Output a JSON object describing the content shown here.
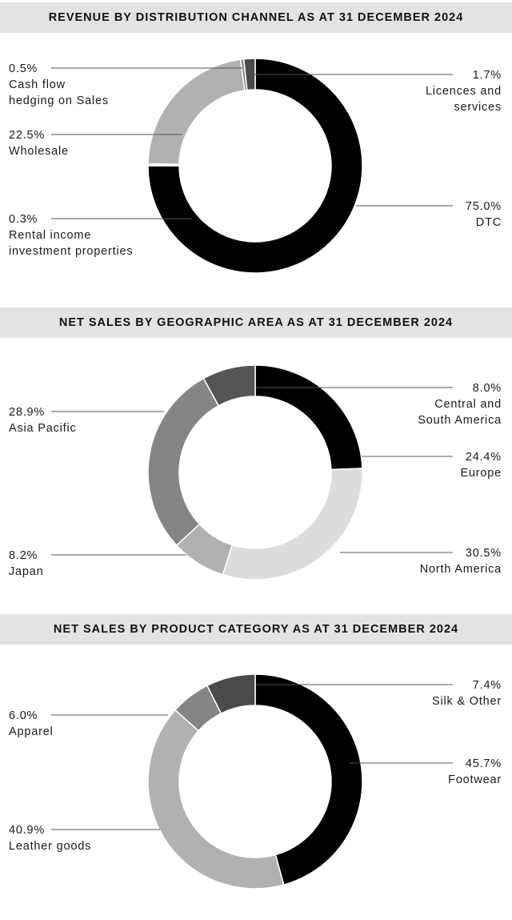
{
  "chart_data": [
    {
      "type": "pie",
      "title": "REVENUE BY DISTRIBUTION CHANNEL AS AT 31 DECEMBER 2024",
      "slices": [
        {
          "pct": "75.0%",
          "value": 75.0,
          "label_lines": [
            "DTC"
          ],
          "color": "#000000"
        },
        {
          "pct": "0.3%",
          "value": 0.3,
          "label_lines": [
            "Rental income",
            "investment properties"
          ],
          "color": "#dcdcdc"
        },
        {
          "pct": "22.5%",
          "value": 22.5,
          "label_lines": [
            "Wholesale"
          ],
          "color": "#b1b1b1"
        },
        {
          "pct": "0.5%",
          "value": 0.5,
          "label_lines": [
            "Cash flow",
            "hedging on Sales"
          ],
          "color": "#8a8a8a"
        },
        {
          "pct": "1.7%",
          "value": 1.7,
          "label_lines": [
            "Licences and",
            "services"
          ],
          "color": "#4a4a4a"
        }
      ]
    },
    {
      "type": "pie",
      "title": "NET SALES BY GEOGRAPHIC AREA AS AT 31 DECEMBER 2024",
      "slices": [
        {
          "pct": "24.4%",
          "value": 24.4,
          "label_lines": [
            "Europe"
          ],
          "color": "#000000"
        },
        {
          "pct": "30.5%",
          "value": 30.5,
          "label_lines": [
            "North America"
          ],
          "color": "#dcdcdc"
        },
        {
          "pct": "8.2%",
          "value": 8.2,
          "label_lines": [
            "Japan"
          ],
          "color": "#b1b1b1"
        },
        {
          "pct": "28.9%",
          "value": 28.9,
          "label_lines": [
            "Asia Pacific"
          ],
          "color": "#858585"
        },
        {
          "pct": "8.0%",
          "value": 8.0,
          "label_lines": [
            "Central and",
            "South America"
          ],
          "color": "#555555"
        }
      ]
    },
    {
      "type": "pie",
      "title": "NET SALES BY PRODUCT CATEGORY AS AT 31 DECEMBER 2024",
      "slices": [
        {
          "pct": "45.7%",
          "value": 45.7,
          "label_lines": [
            "Footwear"
          ],
          "color": "#000000"
        },
        {
          "pct": "40.9%",
          "value": 40.9,
          "label_lines": [
            "Leather goods"
          ],
          "color": "#b1b1b1"
        },
        {
          "pct": "6.0%",
          "value": 6.0,
          "label_lines": [
            "Apparel"
          ],
          "color": "#858585"
        },
        {
          "pct": "7.4%",
          "value": 7.4,
          "label_lines": [
            "Silk & Other"
          ],
          "color": "#4a4a4a"
        }
      ]
    }
  ]
}
